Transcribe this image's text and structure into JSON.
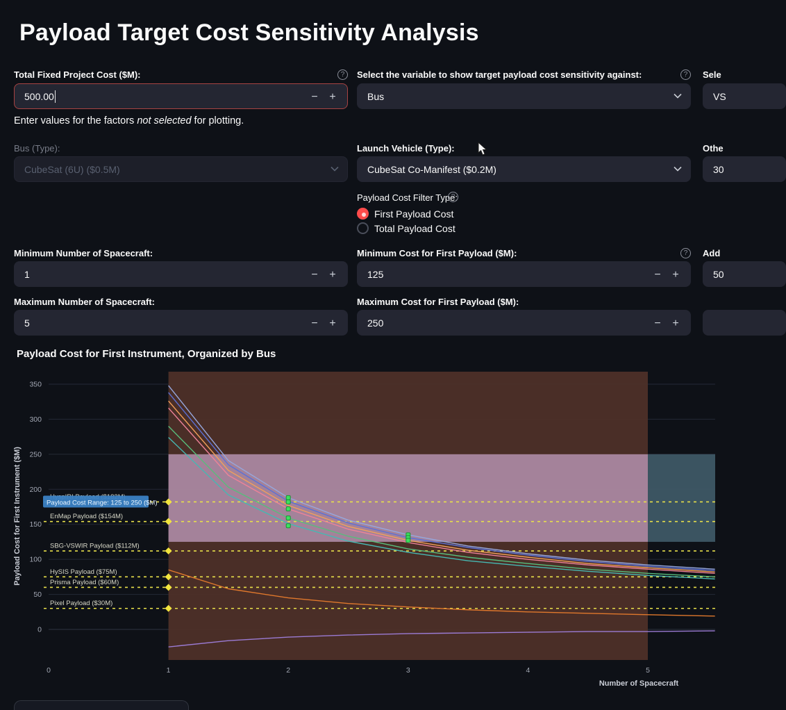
{
  "header": {
    "title": "Payload Target Cost Sensitivity Analysis"
  },
  "controls": {
    "minus": "−",
    "plus": "+",
    "help": "?",
    "fixed_cost_label": "Total Fixed Project Cost ($M):",
    "fixed_cost_value": "500.00",
    "variable_label": "Select the variable to show target payload cost sensitivity against:",
    "variable_value": "Bus",
    "note_prefix": "Enter values for the factors ",
    "note_em": "not selected",
    "note_suffix": " for plotting.",
    "bus_label": "Bus (Type):",
    "bus_value": "CubeSat (6U) ($0.5M)",
    "lv_label": "Launch Vehicle (Type):",
    "lv_value": "CubeSat Co-Manifest ($0.2M)",
    "filter_label": "Payload Cost Filter Type:",
    "filter_option_1": "First Payload Cost",
    "filter_option_2": "Total Payload Cost",
    "min_sc_label": "Minimum Number of Spacecraft:",
    "min_sc_value": "1",
    "max_sc_label": "Maximum Number of Spacecraft:",
    "max_sc_value": "5",
    "min_cost_label": "Minimum Cost for First Payload ($M):",
    "min_cost_value": "125",
    "max_cost_label": "Maximum Cost for First Payload ($M):",
    "max_cost_value": "250",
    "right_select_label": "Sele",
    "right_select_value": "VS",
    "right_other_label": "Othe",
    "right_other_value": "30",
    "right_add_label": "Add",
    "right_add_value": "50",
    "right_bottom_value": ""
  },
  "chart_data": {
    "type": "line",
    "title": "Payload Cost for First Instrument, Organized by Bus",
    "xlabel": "Number of Spacecraft",
    "ylabel": "Payload Cost for First Instrument ($M)",
    "xlim": [
      0,
      5.56
    ],
    "ylim": [
      -44,
      368
    ],
    "xticks": [
      0,
      1,
      2,
      3,
      4,
      5
    ],
    "yticks": [
      0,
      50,
      100,
      150,
      200,
      250,
      300,
      350
    ],
    "grid": true,
    "x": [
      1,
      1.5,
      2,
      2.5,
      3,
      3.5,
      4,
      4.5,
      5,
      5.56
    ],
    "series": [
      {
        "name": "bus-line-lightblue",
        "color": "#96a7dd",
        "y": [
          348,
          241,
          188,
          156,
          135,
          119,
          108,
          99,
          92,
          86
        ]
      },
      {
        "name": "bus-line-blue",
        "color": "#5c71d6",
        "y": [
          338,
          235,
          183,
          152,
          131,
          117,
          106,
          97,
          90,
          84
        ]
      },
      {
        "name": "bus-line-orange",
        "color": "#f2a05a",
        "y": [
          326,
          227,
          177,
          147,
          127,
          113,
          103,
          94,
          88,
          82
        ]
      },
      {
        "name": "bus-line-pink",
        "color": "#ee8298",
        "y": [
          316,
          220,
          172,
          143,
          124,
          110,
          100,
          92,
          86,
          80
        ]
      },
      {
        "name": "bus-line-green",
        "color": "#58bd7c",
        "y": [
          290,
          203,
          159,
          133,
          115,
          103,
          94,
          86,
          80,
          75
        ]
      },
      {
        "name": "bus-line-teal",
        "color": "#46b8b2",
        "y": [
          274,
          192,
          151,
          126,
          110,
          98,
          90,
          83,
          77,
          72
        ]
      },
      {
        "name": "bus-line-darkorange",
        "color": "#e0782c",
        "y": [
          85,
          58,
          45,
          37,
          32,
          28,
          25,
          23,
          21,
          19
        ]
      },
      {
        "name": "bus-line-purple",
        "color": "#9b7bd4",
        "y": [
          -25,
          -16,
          -11,
          -8,
          -6,
          -5,
          -4,
          -3,
          -3,
          -2
        ]
      }
    ],
    "reference_lines": [
      {
        "label": "HyspIRI Payload ($182M)",
        "value": 182
      },
      {
        "label": "EnMap Payload ($154M)",
        "value": 154
      },
      {
        "label": "SBG-VSWIR Payload ($112M)",
        "value": 112
      },
      {
        "label": "HySIS Payload ($75M)",
        "value": 75
      },
      {
        "label": "Prisma Payload ($60M)",
        "value": 60
      },
      {
        "label": "Pixel Payload ($30M)",
        "value": 30
      }
    ],
    "reference_style": {
      "color": "#e8e04a",
      "dash": true,
      "marker_x": 1,
      "label_color": "#d8d8c8"
    },
    "bands": {
      "spacecraft_range": {
        "x0": 1,
        "x1": 5,
        "color": "#4e3028"
      },
      "cost_range": {
        "y0": 125,
        "y1": 250,
        "color_inside": "#a8869f",
        "color_outside": "#3d5765"
      }
    },
    "feasible_markers": {
      "color": "#3ddf5e",
      "stroke": "#1d8f38",
      "points": [
        {
          "x": 2,
          "y": [
            188,
            182,
            172,
            159,
            148
          ]
        },
        {
          "x": 3,
          "y": [
            135,
            131,
            127
          ]
        }
      ]
    },
    "tooltip": {
      "text": "Payload Cost Range: 125 to 250 ($M)",
      "anchor_value": 182,
      "bg": "#3b82c4",
      "text_color": "#e8f4ff"
    },
    "axis_colors": {
      "tick": "#a3a8b4",
      "axis_title": "#c9cdd6",
      "grid": "#242937",
      "zero_grid": "#2e3440"
    }
  }
}
